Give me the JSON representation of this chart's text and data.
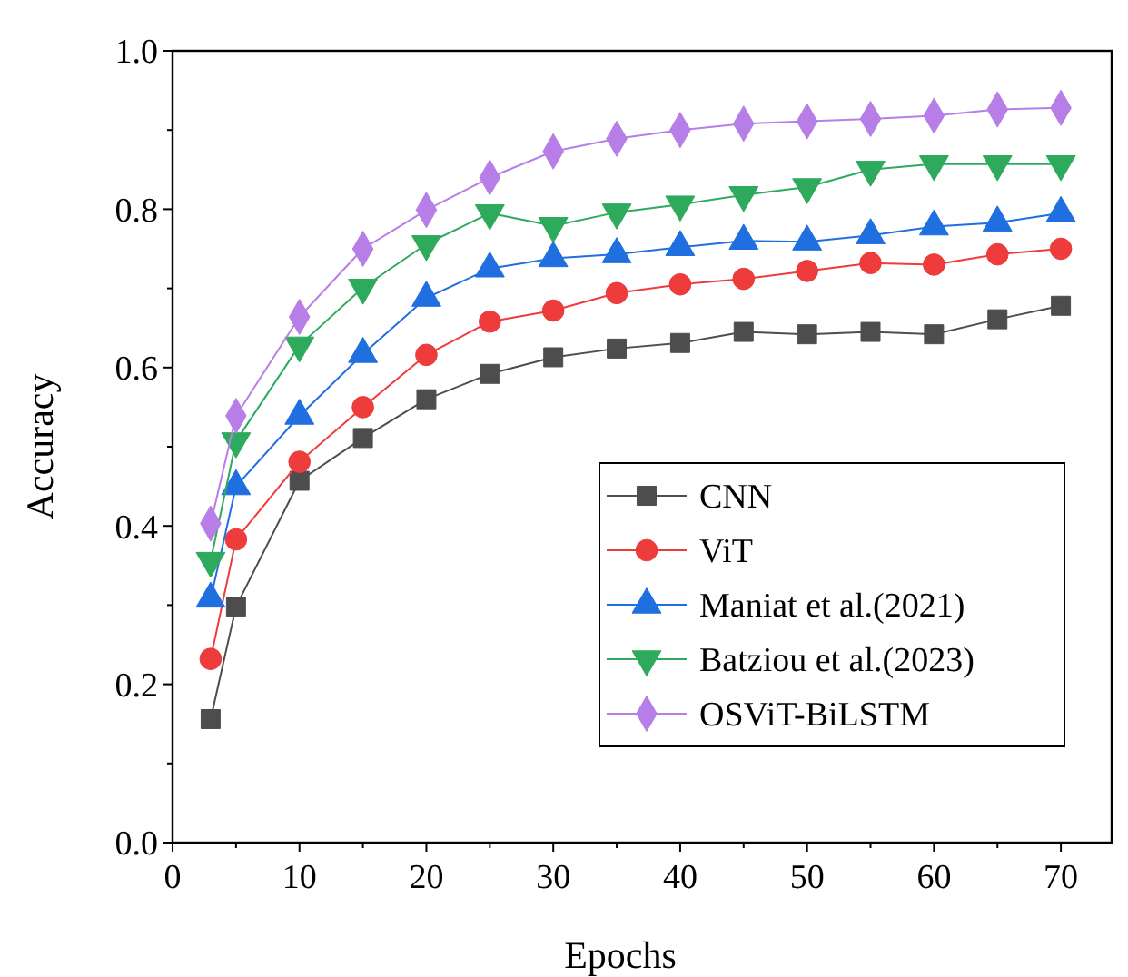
{
  "chart_data": {
    "type": "line",
    "xlabel": "Epochs",
    "ylabel": "Accuracy",
    "x": [
      3,
      5,
      10,
      15,
      20,
      25,
      30,
      35,
      40,
      45,
      50,
      55,
      60,
      65,
      70
    ],
    "series": [
      {
        "name": "CNN",
        "color": "#4d4d4d",
        "marker": "square",
        "values": [
          0.156,
          0.298,
          0.457,
          0.511,
          0.56,
          0.592,
          0.613,
          0.624,
          0.631,
          0.645,
          0.642,
          0.645,
          0.642,
          0.661,
          0.678
        ]
      },
      {
        "name": "ViT",
        "color": "#ee3b3b",
        "marker": "circle",
        "values": [
          0.232,
          0.383,
          0.481,
          0.55,
          0.616,
          0.658,
          0.672,
          0.694,
          0.705,
          0.712,
          0.722,
          0.732,
          0.73,
          0.743,
          0.75
        ]
      },
      {
        "name": "Maniat et al.(2021)",
        "color": "#1f6fe0",
        "marker": "triangle",
        "values": [
          0.308,
          0.45,
          0.539,
          0.617,
          0.688,
          0.725,
          0.738,
          0.743,
          0.752,
          0.76,
          0.759,
          0.767,
          0.778,
          0.783,
          0.795
        ]
      },
      {
        "name": "Batziou et al.(2023)",
        "color": "#2eaa5c",
        "marker": "triangle-down",
        "values": [
          0.356,
          0.507,
          0.628,
          0.701,
          0.756,
          0.795,
          0.779,
          0.796,
          0.806,
          0.818,
          0.828,
          0.85,
          0.857,
          0.857,
          0.857
        ]
      },
      {
        "name": "OSViT-BiLSTM",
        "color": "#b67ee6",
        "marker": "diamond",
        "values": [
          0.403,
          0.539,
          0.664,
          0.75,
          0.799,
          0.84,
          0.873,
          0.889,
          0.9,
          0.908,
          0.911,
          0.914,
          0.918,
          0.926,
          0.928
        ]
      }
    ],
    "xlim": [
      0,
      74
    ],
    "xticks": [
      0,
      {
        "value": 5,
        "label": null
      },
      10,
      {
        "value": 15,
        "label": null
      },
      20,
      {
        "value": 25,
        "label": null
      },
      30,
      {
        "value": 35,
        "label": null
      },
      40,
      {
        "value": 45,
        "label": null
      },
      50,
      {
        "value": 55,
        "label": null
      },
      60,
      {
        "value": 65,
        "label": null
      },
      70
    ],
    "ylim": [
      0,
      1
    ],
    "yticks": [
      "0.0",
      {
        "value": 0.1,
        "label": null
      },
      0.2,
      {
        "value": 0.3,
        "label": null
      },
      0.4,
      {
        "value": 0.5,
        "label": null
      },
      0.6,
      {
        "value": 0.7,
        "label": null
      },
      0.8,
      {
        "value": 0.9,
        "label": null
      },
      "1.0"
    ],
    "grid": false,
    "legend": "right",
    "line_style": "solid"
  }
}
